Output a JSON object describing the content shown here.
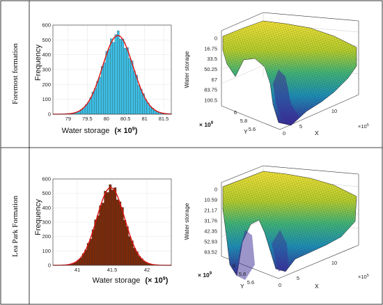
{
  "rows": [
    {
      "label": "Foremost formation",
      "histogram": {
        "type": "bar",
        "xlabel": "Water storage",
        "xlabel_unit": "(× 10",
        "xlabel_exp": "9",
        "xlabel_close": ")",
        "ylabel": "Frequency",
        "xlim": [
          78.6,
          81.7
        ],
        "ylim": [
          0,
          600
        ],
        "xticks": [
          "79",
          "79.5",
          "80",
          "80.5",
          "81",
          "81.5"
        ],
        "xtick_values": [
          79,
          79.5,
          80,
          80.5,
          81,
          81.5
        ],
        "yticks": [
          "0",
          "100",
          "200",
          "300",
          "400",
          "500",
          "600"
        ],
        "ytick_values": [
          0,
          100,
          200,
          300,
          400,
          500,
          600
        ],
        "bar_color": "#3cbde3",
        "curve_color": "#dd1111",
        "mean": 80.3,
        "sd": 0.4,
        "peak": 530,
        "bin_width": 0.06
      },
      "surface": {
        "type": "surface",
        "zlabel": "Water storage",
        "z_ticks": [
          "0",
          "16.75",
          "33.5",
          "50.25",
          "67",
          "83.75",
          "100.5"
        ],
        "y_ticks": [
          "6",
          "5.8",
          "5.6"
        ],
        "x_ticks": [
          "0",
          "5",
          "10"
        ],
        "x_exp_label": "×10",
        "x_exp": "5",
        "y_exp_label": "× 10",
        "y_exp": "9",
        "xlabel": "X",
        "ylabel": "Y"
      }
    },
    {
      "label": "Lea Park Formation",
      "histogram": {
        "type": "bar",
        "xlabel": "Water storage",
        "xlabel_unit": "(× 10",
        "xlabel_exp": "9",
        "xlabel_close": ")",
        "ylabel": "Frequency",
        "xlim": [
          40.65,
          42.35
        ],
        "ylim": [
          0,
          600
        ],
        "xticks": [
          "41",
          "41.5",
          "42"
        ],
        "xtick_values": [
          41,
          41.5,
          42
        ],
        "yticks": [
          "0",
          "100",
          "200",
          "300",
          "400",
          "500",
          "600"
        ],
        "ytick_values": [
          0,
          100,
          200,
          300,
          400,
          500,
          600
        ],
        "bar_color": "#7b2a0a",
        "curve_color": "#dd1111",
        "mean": 41.48,
        "sd": 0.2,
        "peak": 540,
        "bin_width": 0.035
      },
      "surface": {
        "type": "surface",
        "zlabel": "Water storage",
        "z_ticks": [
          "0",
          "10.59",
          "21.17",
          "31.76",
          "42.35",
          "52.93",
          "63.52"
        ],
        "y_ticks": [
          "6",
          "5.8",
          "5.6"
        ],
        "x_ticks": [
          "0",
          "5",
          "10"
        ],
        "x_exp_label": "×10",
        "x_exp": "5",
        "y_exp_label": "× 10",
        "y_exp": "9",
        "xlabel": "X",
        "ylabel": "Y"
      }
    }
  ]
}
